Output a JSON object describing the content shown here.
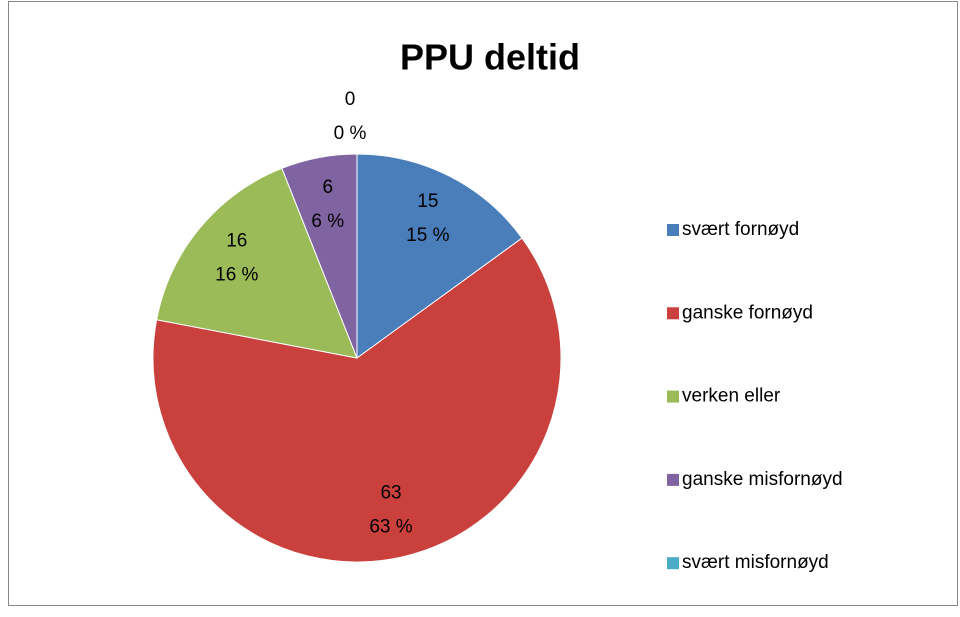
{
  "chart_data": {
    "type": "pie",
    "title": "PPU deltid",
    "categories": [
      "svært fornøyd",
      "ganske fornøyd",
      "verken eller",
      "ganske misfornøyd",
      "svært misfornøyd"
    ],
    "values": [
      15,
      63,
      16,
      6,
      0
    ],
    "value_labels": [
      "15 %",
      "63 %",
      "16 %",
      "6 %",
      "0 %"
    ],
    "colors": [
      "#4a7ebb",
      "#c9403d",
      "#9bbb59",
      "#8064a2",
      "#4bacc6"
    ],
    "legend": "right"
  }
}
